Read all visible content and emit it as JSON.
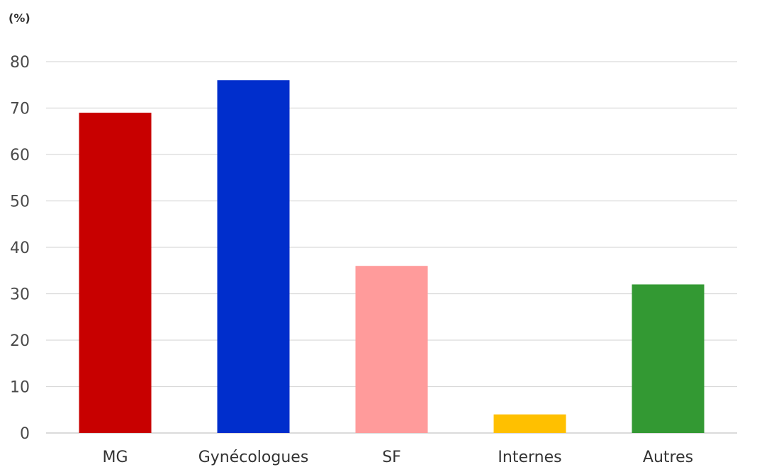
{
  "chart_data": {
    "type": "bar",
    "ylabel": "(%)",
    "ylim": [
      0,
      80
    ],
    "yticks": [
      0,
      10,
      20,
      30,
      40,
      50,
      60,
      70,
      80
    ],
    "grid": true,
    "categories": [
      "MG",
      "Gynécologues",
      "SF",
      "Internes",
      "Autres"
    ],
    "values": [
      69,
      76,
      36,
      4,
      32
    ],
    "colors": [
      "#c80000",
      "#002ecc",
      "#ff9b9b",
      "#ffc000",
      "#339933"
    ]
  }
}
